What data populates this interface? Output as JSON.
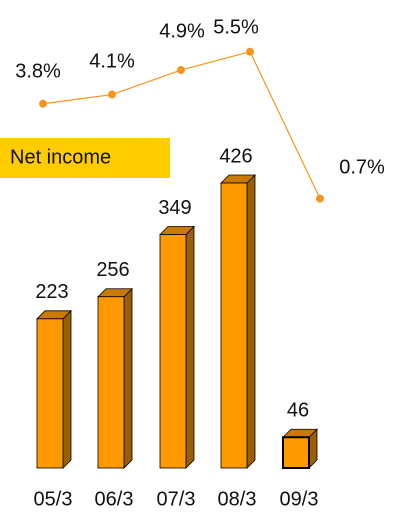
{
  "chart_data": {
    "type": "bar",
    "categories": [
      "05/3",
      "06/3",
      "07/3",
      "08/3",
      "09/3"
    ],
    "series": [
      {
        "name": "Net income",
        "type": "bar",
        "color": "#ff9900",
        "values": [
          223,
          256,
          349,
          426,
          46
        ]
      },
      {
        "type": "line",
        "color": "#f7941d",
        "values": [
          3.8,
          4.1,
          4.9,
          5.5,
          0.7
        ],
        "value_labels": [
          "3.8%",
          "4.1%",
          "4.9%",
          "5.5%",
          "0.7%"
        ]
      }
    ],
    "legend_color": "#ffcc00"
  }
}
